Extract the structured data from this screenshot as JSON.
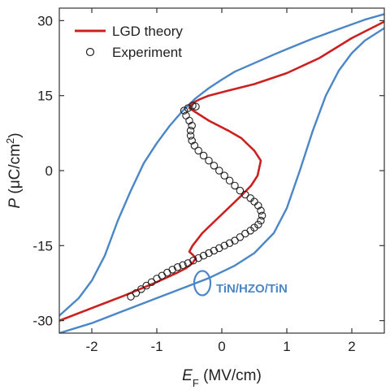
{
  "chart_data": {
    "type": "line",
    "title": "",
    "xlabel": {
      "main": "E",
      "sub": "F",
      "unit": " (MV/cm)"
    },
    "ylabel": {
      "main": "P",
      "unit": " (μC/cm",
      "sup": "2",
      "close": ")"
    },
    "xlim": [
      -2.5,
      2.5
    ],
    "ylim": [
      -32.5,
      32.5
    ],
    "xticks": [
      -2,
      -1,
      0,
      1,
      2
    ],
    "xtick_labels": [
      "-2",
      "-1",
      "0",
      "1",
      "2"
    ],
    "yticks": [
      -30,
      -15,
      0,
      15,
      30
    ],
    "ytick_labels": [
      "-30",
      "-15",
      "0",
      "15",
      "30"
    ],
    "grid": false,
    "legend_position": "top-left",
    "legend": [
      {
        "label": "LGD theory",
        "marker": "line",
        "color": "#cc2020"
      },
      {
        "label": "Experiment",
        "marker": "open-circle",
        "color": "#222222"
      }
    ],
    "annotation": {
      "text": "TiN/HZO/TiN",
      "color": "#4a86c8",
      "at": [
        -0.3,
        -22.5
      ]
    },
    "series": [
      {
        "name": "",
        "kind": "loop-upper-branch",
        "color": "#4a86c8",
        "x": [
          -2.5,
          -2.2,
          -2.0,
          -1.8,
          -1.6,
          -1.4,
          -1.2,
          -1.0,
          -0.8,
          -0.6,
          -0.4,
          -0.2,
          0.0,
          0.2,
          0.5,
          0.8,
          1.0,
          1.4,
          1.8,
          2.2,
          2.5
        ],
        "y": [
          -29,
          -25.5,
          -22,
          -17,
          -10,
          -4,
          1.5,
          5.5,
          9,
          12,
          14.5,
          16.5,
          18.2,
          19.8,
          21.5,
          23.2,
          24.3,
          26.4,
          28.3,
          30.2,
          31.3
        ]
      },
      {
        "name": "",
        "kind": "loop-lower-branch",
        "color": "#4a86c8",
        "x": [
          -2.5,
          -2.0,
          -1.5,
          -1.0,
          -0.6,
          -0.2,
          0.2,
          0.5,
          0.8,
          1.0,
          1.2,
          1.4,
          1.6,
          1.8,
          2.0,
          2.2,
          2.5
        ],
        "y": [
          -32.5,
          -30.5,
          -28,
          -25.5,
          -23.5,
          -21.5,
          -19,
          -16.5,
          -12.5,
          -7.5,
          0,
          8,
          15,
          20,
          23.5,
          26,
          28.5
        ]
      },
      {
        "name": "LGD theory",
        "kind": "s-curve",
        "color": "#cc2020",
        "x": [
          -2.5,
          -2.0,
          -1.5,
          -1.0,
          -0.7,
          -0.55,
          -0.45,
          -0.4,
          -0.45,
          -0.5,
          -0.45,
          -0.3,
          -0.1,
          0.1,
          0.3,
          0.45,
          0.55,
          0.6,
          0.5,
          0.3,
          0.1,
          -0.2,
          -0.5,
          -0.45,
          -0.35,
          -0.2,
          0.1,
          0.5,
          1.0,
          1.5,
          2.0,
          2.5
        ],
        "y": [
          -30,
          -27.5,
          -25,
          -22.3,
          -20.5,
          -19.5,
          -18.5,
          -17.5,
          -16.8,
          -16.2,
          -15,
          -12.5,
          -10,
          -7.5,
          -5,
          -3,
          -1,
          2,
          4,
          6.5,
          8,
          10,
          12.5,
          13.5,
          14.2,
          15,
          16,
          17.3,
          19.5,
          22.5,
          26.5,
          29.8
        ]
      },
      {
        "name": "Experiment",
        "kind": "scatter",
        "color": "#222222",
        "x": [
          -1.4,
          -1.32,
          -1.24,
          -1.16,
          -1.08,
          -1.0,
          -0.92,
          -0.84,
          -0.76,
          -0.68,
          -0.6,
          -0.52,
          -0.44,
          -0.36,
          -0.28,
          -0.2,
          -0.12,
          -0.04,
          0.04,
          0.12,
          0.2,
          0.28,
          0.36,
          0.44,
          0.5,
          0.56,
          0.6,
          0.62,
          0.6,
          0.56,
          0.5,
          0.44,
          0.36,
          0.28,
          0.2,
          0.12,
          0.04,
          -0.04,
          -0.12,
          -0.2,
          -0.28,
          -0.36,
          -0.42,
          -0.46,
          -0.48,
          -0.48,
          -0.46,
          -0.5,
          -0.55,
          -0.58,
          -0.52,
          -0.45,
          -0.4
        ],
        "y": [
          -25.2,
          -24.5,
          -23.7,
          -23.0,
          -22.3,
          -21.6,
          -21.0,
          -20.4,
          -19.8,
          -19.3,
          -18.9,
          -18.5,
          -18.0,
          -17.5,
          -17.0,
          -16.5,
          -16.0,
          -15.5,
          -15.0,
          -14.5,
          -14.0,
          -13.3,
          -12.6,
          -12.0,
          -11.4,
          -10.8,
          -10.0,
          -9.0,
          -8.0,
          -7.0,
          -6.2,
          -5.5,
          -4.8,
          -4.0,
          -3.0,
          -2.0,
          -1.0,
          0.0,
          1.0,
          2.0,
          3.0,
          4.0,
          5.0,
          6.0,
          7.0,
          8.0,
          9.0,
          10.0,
          11.0,
          12.0,
          12.5,
          13.0,
          12.8
        ]
      }
    ]
  }
}
